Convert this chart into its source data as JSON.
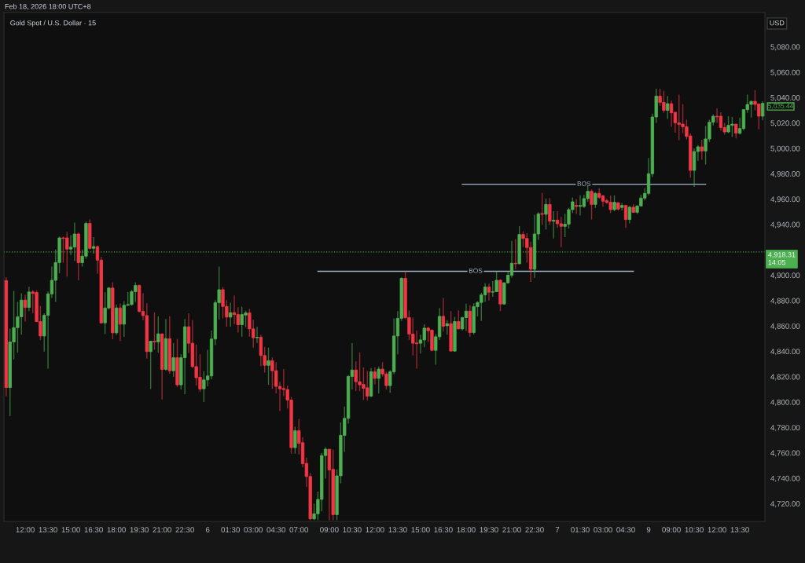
{
  "chart_data": {
    "type": "candlestick",
    "title": "Gold Spot / U.S. Dollar · 15",
    "subtitle": "Feb 18, 2026 18:00 UTC+8",
    "ylabel": "USD",
    "categories": [
      null,
      null,
      null,
      null,
      null,
      "12:00",
      null,
      null,
      null,
      null,
      null,
      "13:30",
      null,
      null,
      null,
      null,
      null,
      "15:00",
      null,
      null,
      null,
      null,
      null,
      "16:30",
      null,
      null,
      null,
      null,
      null,
      "18:00",
      null,
      null,
      null,
      null,
      null,
      "19:30",
      null,
      null,
      null,
      null,
      null,
      "21:00",
      null,
      null,
      null,
      null,
      null,
      "22:30",
      null,
      null,
      null,
      null,
      null,
      "6",
      null,
      null,
      null,
      null,
      null,
      "01:30",
      null,
      null,
      null,
      null,
      null,
      "03:00",
      null,
      null,
      null,
      null,
      null,
      "04:30",
      null,
      null,
      null,
      null,
      null,
      "07:00",
      null,
      null,
      null,
      null,
      null,
      null,
      null,
      "09:00",
      null,
      null,
      null,
      null,
      null,
      "10:30",
      null,
      null,
      null,
      null,
      null,
      "12:00",
      null,
      null,
      null,
      null,
      null,
      "13:30",
      null,
      null,
      null,
      null,
      null,
      "15:00",
      null,
      null,
      null,
      null,
      null,
      "16:30",
      null,
      null,
      null,
      null,
      null,
      "18:00",
      null,
      null,
      null,
      null,
      null,
      "19:30",
      null,
      null,
      null,
      null,
      null,
      "21:00",
      null,
      null,
      null,
      null,
      null,
      "22:30",
      null,
      null,
      null,
      null,
      null,
      "7",
      null,
      null,
      null,
      null,
      null,
      "01:30",
      null,
      null,
      null,
      null,
      null,
      "03:00",
      null,
      null,
      null,
      null,
      null,
      "04:30",
      null,
      null,
      null,
      null,
      null,
      "9",
      null,
      null,
      null,
      null,
      null,
      "09:00",
      null,
      null,
      null,
      null,
      null,
      "10:30",
      null,
      null,
      null,
      null,
      null,
      "12:00",
      null,
      null,
      null,
      null,
      null,
      "13:30",
      null,
      null,
      null,
      null,
      null,
      null
    ],
    "ohlc": [
      [
        4895.8,
        4898.5,
        4804.7,
        4811.5
      ],
      [
        4811.5,
        4857.9,
        4789,
        4847.4
      ],
      [
        4847.4,
        4887.6,
        4833.6,
        4858.7
      ],
      [
        4858.7,
        4879,
        4839,
        4867.2
      ],
      [
        4867.2,
        4885.7,
        4853.2,
        4880.4
      ],
      [
        4880.4,
        4884.5,
        4863.5,
        4874.6
      ],
      [
        4874.6,
        4890.9,
        4871.7,
        4886.8
      ],
      [
        4886.8,
        4888.2,
        4870,
        4885.7
      ],
      [
        4886.4,
        4888.2,
        4863,
        4863.5
      ],
      [
        4863.5,
        4875.8,
        4849,
        4852.1
      ],
      [
        4852.1,
        4870,
        4839.8,
        4868.4
      ],
      [
        4868.4,
        4887.2,
        4826.4,
        4885.3
      ],
      [
        4885.3,
        4906.8,
        4882,
        4896
      ],
      [
        4896,
        4920.2,
        4879,
        4910
      ],
      [
        4910,
        4930.5,
        4901.6,
        4929.4
      ],
      [
        4929.4,
        4930.5,
        4909.9,
        4929
      ],
      [
        4929.4,
        4934,
        4898.9,
        4920.6
      ],
      [
        4920.6,
        4931.5,
        4916,
        4922.2
      ],
      [
        4922.2,
        4941.4,
        4911.3,
        4932.5
      ],
      [
        4932.5,
        4933.6,
        4896,
        4909.9
      ],
      [
        4909.9,
        4920.2,
        4906.8,
        4915
      ],
      [
        4915,
        4942.2,
        4913,
        4940.8
      ],
      [
        4940.8,
        4943.9,
        4920.2,
        4921.2
      ],
      [
        4921.2,
        4930,
        4917,
        4922.6
      ],
      [
        4922.6,
        4923.3,
        4901.2,
        4911.9
      ],
      [
        4911.9,
        4914.6,
        4862,
        4862.4
      ],
      [
        4862.4,
        4886.6,
        4853.6,
        4874.2
      ],
      [
        4874.2,
        4890.7,
        4873,
        4889.9
      ],
      [
        4889.9,
        4894.4,
        4849.5,
        4854.6
      ],
      [
        4854.6,
        4876.9,
        4853,
        4874.2
      ],
      [
        4874.2,
        4877.6,
        4848,
        4861.4
      ],
      [
        4861.4,
        4879.6,
        4851.5,
        4876.3
      ],
      [
        4876.3,
        4886.8,
        4876,
        4876.9
      ],
      [
        4876.9,
        4888.6,
        4876,
        4887
      ],
      [
        4887,
        4894.4,
        4879,
        4891.9
      ],
      [
        4891.9,
        4892.8,
        4870.5,
        4871.5
      ],
      [
        4871.5,
        4885.7,
        4864.5,
        4868.2
      ],
      [
        4868.2,
        4877.9,
        4834.2,
        4839.8
      ],
      [
        4839.8,
        4848,
        4810.3,
        4848
      ],
      [
        4848,
        4870.7,
        4841.2,
        4847.4
      ],
      [
        4847.4,
        4867.6,
        4839,
        4853.8
      ],
      [
        4853.8,
        4853.8,
        4802,
        4825.8
      ],
      [
        4825.8,
        4865.5,
        4824.8,
        4850
      ],
      [
        4850,
        4867.6,
        4822.3,
        4824.7
      ],
      [
        4824.7,
        4846.6,
        4820,
        4835
      ],
      [
        4835,
        4849.7,
        4812,
        4813.6
      ],
      [
        4813.6,
        4837.7,
        4810,
        4835
      ],
      [
        4835,
        4865.5,
        4806.2,
        4859.4
      ],
      [
        4859.4,
        4870,
        4838.8,
        4846.4
      ],
      [
        4846.4,
        4864.5,
        4826.8,
        4828
      ],
      [
        4828,
        4845.3,
        4813,
        4819.2
      ],
      [
        4819.6,
        4837.7,
        4808,
        4810.3
      ],
      [
        4810.5,
        4824.3,
        4800,
        4817.5
      ],
      [
        4817.5,
        4841.2,
        4812.4,
        4820.6
      ],
      [
        4820.6,
        4856.3,
        4818,
        4849.7
      ],
      [
        4849.7,
        4880.4,
        4845,
        4878.3
      ],
      [
        4878.3,
        4906.8,
        4865.1,
        4888.6
      ],
      [
        4888.6,
        4890.7,
        4866,
        4875.4
      ],
      [
        4875.4,
        4880.4,
        4859.4,
        4867
      ],
      [
        4867,
        4878.3,
        4859.4,
        4870.5
      ],
      [
        4870.5,
        4884,
        4861.4,
        4869
      ],
      [
        4869,
        4874.8,
        4854.8,
        4861
      ],
      [
        4861,
        4875.2,
        4851.5,
        4869
      ],
      [
        4868.6,
        4872,
        4859,
        4870.3
      ],
      [
        4870.3,
        4873.4,
        4851.5,
        4857.7
      ],
      [
        4857.7,
        4865,
        4842.9,
        4850.7
      ],
      [
        4850.7,
        4859.3,
        4846.6,
        4851.1
      ],
      [
        4851.1,
        4853.2,
        4828.4,
        4836.7
      ],
      [
        4836.7,
        4843.5,
        4823.3,
        4829
      ],
      [
        4829,
        4842.9,
        4813.6,
        4832.6
      ],
      [
        4832.6,
        4835.2,
        4810.5,
        4824.7
      ],
      [
        4824.7,
        4831.5,
        4806.8,
        4812.4
      ],
      [
        4812.4,
        4816,
        4793,
        4810.5
      ],
      [
        4810.7,
        4826,
        4804.7,
        4809.9
      ],
      [
        4809.9,
        4813,
        4795,
        4801.6
      ],
      [
        4801.6,
        4804,
        4759.4,
        4764.1
      ],
      [
        4764.1,
        4780.6,
        4759.4,
        4777.5
      ],
      [
        4777.5,
        4786.8,
        4758.8,
        4767.6
      ],
      [
        4768,
        4772.4,
        4748.7,
        4751.5
      ],
      [
        4751.7,
        4756.3,
        4733,
        4741.4
      ],
      [
        4741.4,
        4744,
        4707,
        4708
      ],
      [
        4708,
        4720,
        4707,
        4712
      ],
      [
        4712,
        4729.5,
        4707,
        4723.3
      ],
      [
        4723.3,
        4760,
        4714,
        4757.9
      ],
      [
        4757.9,
        4764.5,
        4739.8,
        4762.9
      ],
      [
        4762.9,
        4762.9,
        4707,
        4746.6
      ],
      [
        4747,
        4762.5,
        4707,
        4711.3
      ],
      [
        4711.3,
        4747,
        4707,
        4741.9
      ],
      [
        4741.9,
        4784.1,
        4736,
        4773.8
      ],
      [
        4773.8,
        4796.5,
        4760.8,
        4787.2
      ],
      [
        4787.2,
        4821.2,
        4783,
        4820.2
      ],
      [
        4820.2,
        4846.4,
        4809.9,
        4825.3
      ],
      [
        4825.3,
        4832.1,
        4808.8,
        4816.1
      ],
      [
        4816.1,
        4839.2,
        4808.8,
        4813.6
      ],
      [
        4814,
        4827.4,
        4801.6,
        4810.9
      ],
      [
        4811.3,
        4824.7,
        4801.2,
        4804.7
      ],
      [
        4804.7,
        4826.8,
        4804,
        4823.9
      ],
      [
        4823.9,
        4827.4,
        4814,
        4818.7
      ],
      [
        4818.7,
        4828,
        4806.8,
        4826
      ],
      [
        4826,
        4831.5,
        4820,
        4822.2
      ],
      [
        4822.2,
        4823.9,
        4809.9,
        4813
      ],
      [
        4813,
        4825.3,
        4807.4,
        4823.9
      ],
      [
        4823.9,
        4866,
        4822,
        4852.1
      ],
      [
        4852.1,
        4871.7,
        4837.7,
        4866
      ],
      [
        4866,
        4898.5,
        4864,
        4897.5
      ],
      [
        4897.5,
        4903,
        4865.5,
        4866.6
      ],
      [
        4866.6,
        4872.1,
        4849,
        4853.6
      ],
      [
        4853.6,
        4866.6,
        4836.7,
        4846.4
      ],
      [
        4846.6,
        4856.3,
        4826.4,
        4846
      ],
      [
        4846.4,
        4853.2,
        4838.3,
        4849
      ],
      [
        4849,
        4861.4,
        4843.3,
        4858.3
      ],
      [
        4858.3,
        4859.4,
        4847.4,
        4856.3
      ],
      [
        4856.7,
        4857.3,
        4840,
        4840.8
      ],
      [
        4840.8,
        4853.6,
        4829.5,
        4851.5
      ],
      [
        4851.5,
        4874.2,
        4849,
        4867.6
      ],
      [
        4867.6,
        4882,
        4855.6,
        4859.8
      ],
      [
        4860.2,
        4864.5,
        4853.2,
        4861.8
      ],
      [
        4861.8,
        4871.7,
        4840,
        4840.2
      ],
      [
        4840.2,
        4867.2,
        4839.6,
        4863.5
      ],
      [
        4863.5,
        4872.3,
        4857.3,
        4857.7
      ],
      [
        4857.7,
        4867.2,
        4856.3,
        4866.6
      ],
      [
        4866.6,
        4877.5,
        4856,
        4871.7
      ],
      [
        4871.7,
        4876.3,
        4851.5,
        4854.8
      ],
      [
        4854.8,
        4877.9,
        4853.2,
        4875.2
      ],
      [
        4875.2,
        4879.6,
        4867.6,
        4878.5
      ],
      [
        4878.5,
        4886.2,
        4863.9,
        4884.5
      ],
      [
        4884.5,
        4893.8,
        4879,
        4890.7
      ],
      [
        4890.7,
        4893.4,
        4880,
        4886.6
      ],
      [
        4886.6,
        4895.4,
        4883,
        4887
      ],
      [
        4887,
        4903,
        4886.6,
        4896
      ],
      [
        4896,
        4896.9,
        4871.7,
        4877.3
      ],
      [
        4877.3,
        4894.4,
        4876.9,
        4894
      ],
      [
        4894,
        4903,
        4893.4,
        4900
      ],
      [
        4900,
        4927,
        4898.1,
        4909.4
      ],
      [
        4909.4,
        4928.4,
        4904.7,
        4909
      ],
      [
        4909,
        4938.7,
        4908.8,
        4932.1
      ],
      [
        4932.1,
        4934.6,
        4922.2,
        4929
      ],
      [
        4929,
        4933.2,
        4909.9,
        4921.8
      ],
      [
        4921.8,
        4926.4,
        4894.8,
        4904.7
      ],
      [
        4904.7,
        4947.6,
        4897.9,
        4932.5
      ],
      [
        4932.5,
        4949.6,
        4927.8,
        4948.4
      ],
      [
        4948.6,
        4964.9,
        4939.7,
        4948
      ],
      [
        4948,
        4960.4,
        4936,
        4955.8
      ],
      [
        4955.8,
        4960.8,
        4939.7,
        4942.6
      ],
      [
        4942.6,
        4950.5,
        4929,
        4943.4
      ],
      [
        4943.4,
        4950.5,
        4937.3,
        4940.6
      ],
      [
        4940.6,
        4945.9,
        4922.2,
        4938.5
      ],
      [
        4938.5,
        4948.4,
        4930,
        4940.2
      ],
      [
        4940.2,
        4953.2,
        4936.7,
        4951.7
      ],
      [
        4951.7,
        4961.2,
        4949,
        4957.9
      ],
      [
        4955,
        4960,
        4948.4,
        4954.2
      ],
      [
        4954.2,
        4963,
        4947,
        4955
      ],
      [
        4954.2,
        4963.5,
        4953,
        4960.4
      ],
      [
        4960.4,
        4970.7,
        4958,
        4966.1
      ],
      [
        4966.1,
        4967.6,
        4943.9,
        4955.8
      ],
      [
        4955.8,
        4965.5,
        4953,
        4964.5
      ],
      [
        4964.5,
        4968.6,
        4960.4,
        4961.4
      ],
      [
        4962.5,
        4963.5,
        4954,
        4958.3
      ],
      [
        4958.7,
        4960.4,
        4956.3,
        4957.3
      ],
      [
        4957.5,
        4962.9,
        4949,
        4951.7
      ],
      [
        4951.7,
        4962.9,
        4950.5,
        4957.5
      ],
      [
        4957.1,
        4957.5,
        4951,
        4952.1
      ],
      [
        4953.4,
        4957,
        4951,
        4955
      ],
      [
        4955,
        4955,
        4937.3,
        4943.9
      ],
      [
        4943.9,
        4954.6,
        4940.8,
        4953.6
      ],
      [
        4953.6,
        4955.8,
        4949,
        4949.6
      ],
      [
        4949.6,
        4955.2,
        4948.4,
        4954.6
      ],
      [
        4954.6,
        4963.5,
        4954,
        4960.8
      ],
      [
        4960.8,
        4968.6,
        4959,
        4964.5
      ],
      [
        4964.5,
        4992.3,
        4963,
        4980
      ],
      [
        4980,
        5027.4,
        4977.3,
        5024.7
      ],
      [
        5024.7,
        5047,
        5020.1,
        5041.2
      ],
      [
        5041.2,
        5047,
        5033.5,
        5036.2
      ],
      [
        5036.2,
        5045.3,
        5028,
        5030
      ],
      [
        5030,
        5041.2,
        5023.2,
        5035.2
      ],
      [
        5035.2,
        5037.7,
        5017,
        5028
      ],
      [
        5028.4,
        5028.4,
        5012.3,
        5020.1
      ],
      [
        5020.1,
        5042.4,
        5006.5,
        5018.9
      ],
      [
        5019.1,
        5034.8,
        5012,
        5017
      ],
      [
        5017,
        5022.6,
        5007,
        5009.4
      ],
      [
        5009.8,
        5011.9,
        4976.9,
        4982.6
      ],
      [
        4982.6,
        5000,
        4969.6,
        4997.5
      ],
      [
        4997.5,
        5002.6,
        4990,
        5001.2
      ],
      [
        5001.2,
        5006.7,
        4991,
        4997.9
      ],
      [
        4997.9,
        5017.7,
        4987.2,
        5007.4
      ],
      [
        5007.4,
        5022.6,
        5005,
        5020.6
      ],
      [
        5020.6,
        5026.7,
        5018,
        5025.3
      ],
      [
        5025.3,
        5031.5,
        5020,
        5024.7
      ],
      [
        5025.3,
        5028.4,
        5014,
        5016.4
      ],
      [
        5016.4,
        5020,
        5011,
        5012.9
      ],
      [
        5012.9,
        5025.3,
        5012,
        5018.1
      ],
      [
        5018.1,
        5024.7,
        5009,
        5019.1
      ],
      [
        5019.1,
        5019.1,
        5007.8,
        5011.9
      ],
      [
        5011.9,
        5024.3,
        5011,
        5015.6
      ],
      [
        5015.6,
        5030.9,
        5014,
        5030.5
      ],
      [
        5030.5,
        5042.4,
        5028,
        5034.6
      ],
      [
        5034.6,
        5037.7,
        5024.3,
        5037
      ],
      [
        5037,
        5045.9,
        5030,
        5034.6
      ],
      [
        5035,
        5035,
        5015,
        5025.3
      ],
      [
        5025.3,
        5037,
        5022,
        5035.44
      ]
    ],
    "colors": [
      "#f23645",
      "#4caf50",
      "#4caf50",
      "#4caf50",
      "#4caf50",
      "#f23645",
      "#4caf50",
      "#f23645",
      "#f23645",
      "#f23645",
      "#4caf50",
      "#4caf50",
      "#4caf50",
      "#4caf50",
      "#4caf50",
      "#f23645",
      "#f23645",
      "#4caf50",
      "#4caf50",
      "#f23645",
      "#4caf50",
      "#4caf50",
      "#f23645",
      "#4caf50",
      "#f23645",
      "#f23645",
      "#4caf50",
      "#4caf50",
      "#f23645",
      "#4caf50",
      "#f23645",
      "#4caf50",
      "#4caf50",
      "#4caf50",
      "#4caf50",
      "#f23645",
      "#f23645",
      "#f23645",
      "#4caf50",
      "#f23645",
      "#4caf50",
      "#f23645",
      "#4caf50",
      "#f23645",
      "#4caf50",
      "#f23645",
      "#4caf50",
      "#4caf50",
      "#f23645",
      "#f23645",
      "#f23645",
      "#f23645",
      "#4caf50",
      "#4caf50",
      "#4caf50",
      "#4caf50",
      "#4caf50",
      "#f23645",
      "#f23645",
      "#4caf50",
      "#f23645",
      "#f23645",
      "#4caf50",
      "#4caf50",
      "#f23645",
      "#f23645",
      "#4caf50",
      "#f23645",
      "#f23645",
      "#4caf50",
      "#f23645",
      "#f23645",
      "#f23645",
      "#f23645",
      "#f23645",
      "#f23645",
      "#4caf50",
      "#f23645",
      "#f23645",
      "#f23645",
      "#f23645",
      "#4caf50",
      "#4caf50",
      "#4caf50",
      "#4caf50",
      "#f23645",
      "#f23645",
      "#4caf50",
      "#4caf50",
      "#4caf50",
      "#4caf50",
      "#4caf50",
      "#f23645",
      "#f23645",
      "#f23645",
      "#f23645",
      "#4caf50",
      "#f23645",
      "#4caf50",
      "#f23645",
      "#f23645",
      "#4caf50",
      "#4caf50",
      "#4caf50",
      "#4caf50",
      "#f23645",
      "#f23645",
      "#f23645",
      "#f23645",
      "#4caf50",
      "#4caf50",
      "#f23645",
      "#f23645",
      "#4caf50",
      "#4caf50",
      "#f23645",
      "#4caf50",
      "#f23645",
      "#4caf50",
      "#f23645",
      "#4caf50",
      "#4caf50",
      "#f23645",
      "#4caf50",
      "#4caf50",
      "#4caf50",
      "#4caf50",
      "#f23645",
      "#4caf50",
      "#4caf50",
      "#f23645",
      "#4caf50",
      "#4caf50",
      "#4caf50",
      "#f23645",
      "#4caf50",
      "#f23645",
      "#f23645",
      "#f23645",
      "#4caf50",
      "#4caf50",
      "#f23645",
      "#4caf50",
      "#f23645",
      "#4caf50",
      "#f23645",
      "#f23645",
      "#4caf50",
      "#4caf50",
      "#4caf50",
      "#f23645",
      "#4caf50",
      "#4caf50",
      "#4caf50",
      "#f23645",
      "#4caf50",
      "#f23645",
      "#f23645",
      "#f23645",
      "#f23645",
      "#4caf50",
      "#f23645",
      "#4caf50",
      "#f23645",
      "#4caf50",
      "#f23645",
      "#4caf50",
      "#4caf50",
      "#4caf50",
      "#4caf50",
      "#4caf50",
      "#4caf50",
      "#f23645",
      "#f23645",
      "#4caf50",
      "#f23645",
      "#f23645",
      "#f23645",
      "#f23645",
      "#f23645",
      "#f23645",
      "#4caf50",
      "#4caf50",
      "#f23645",
      "#4caf50",
      "#4caf50",
      "#4caf50",
      "#f23645",
      "#f23645",
      "#f23645",
      "#4caf50",
      "#4caf50",
      "#f23645",
      "#4caf50",
      "#4caf50",
      "#4caf50",
      "#4caf50",
      "#f23645",
      "#f23645",
      "#4caf50"
    ],
    "series": [
      {
        "type": "line",
        "name": "BOS",
        "color": "#9fb4c8",
        "values": [
          null,
          null,
          null,
          null,
          null,
          null,
          null,
          null,
          null,
          null,
          null,
          null,
          null,
          null,
          null,
          null,
          null,
          null,
          null,
          null,
          null,
          null,
          null,
          null,
          null,
          null,
          null,
          null,
          null,
          null,
          null,
          null,
          null,
          null,
          null,
          null,
          null,
          null,
          null,
          null,
          null,
          null,
          null,
          null,
          null,
          null,
          null,
          null,
          null,
          null,
          null,
          null,
          null,
          null,
          null,
          null,
          null,
          null,
          null,
          null,
          null,
          null,
          null,
          null,
          null,
          null,
          null,
          null,
          null,
          null,
          null,
          null,
          null,
          null,
          null,
          null,
          null,
          null,
          null,
          null,
          null,
          null,
          4903.1,
          null,
          null,
          null,
          null,
          null,
          null,
          null,
          null,
          null,
          null,
          null,
          null,
          null,
          null,
          null,
          null,
          null,
          null,
          null,
          null,
          null,
          null,
          null,
          null,
          null,
          null,
          null,
          null,
          null,
          null,
          null,
          null,
          null,
          null,
          null,
          null,
          null,
          null,
          null,
          null,
          null,
          null,
          null,
          null,
          null,
          null,
          null,
          null,
          null,
          null,
          null,
          null,
          null,
          null,
          null,
          null,
          null,
          null,
          null,
          null,
          null,
          null,
          null,
          null,
          null,
          null,
          null,
          null,
          null,
          null,
          null,
          null,
          null,
          null,
          null,
          null,
          null,
          null,
          null,
          null,
          null,
          null,
          4903.1,
          null,
          null,
          null,
          null,
          null,
          null,
          null,
          null,
          null,
          null,
          null,
          null,
          null,
          null,
          null,
          null,
          null,
          null,
          null,
          null,
          null,
          null,
          null,
          null,
          null,
          null,
          null,
          null,
          null,
          null,
          null,
          null,
          null,
          null
        ]
      },
      {
        "type": "line",
        "name": "BOS",
        "color": "#9fb4c8",
        "values": [
          null,
          null,
          null,
          null,
          null,
          null,
          null,
          null,
          null,
          null,
          null,
          null,
          null,
          null,
          null,
          null,
          null,
          null,
          null,
          null,
          null,
          null,
          null,
          null,
          null,
          null,
          null,
          null,
          null,
          null,
          null,
          null,
          null,
          null,
          null,
          null,
          null,
          null,
          null,
          null,
          null,
          null,
          null,
          null,
          null,
          null,
          null,
          null,
          null,
          null,
          null,
          null,
          null,
          null,
          null,
          null,
          null,
          null,
          null,
          null,
          null,
          null,
          null,
          null,
          null,
          null,
          null,
          null,
          null,
          null,
          null,
          null,
          null,
          null,
          null,
          null,
          null,
          null,
          null,
          null,
          null,
          null,
          null,
          null,
          null,
          null,
          null,
          null,
          null,
          null,
          null,
          null,
          null,
          null,
          null,
          null,
          null,
          null,
          null,
          null,
          null,
          null,
          null,
          null,
          null,
          null,
          null,
          null,
          null,
          null,
          null,
          null,
          null,
          null,
          null,
          null,
          null,
          null,
          null,
          null,
          4971.7,
          null,
          null,
          null,
          null,
          null,
          null,
          null,
          null,
          null,
          null,
          null,
          null,
          null,
          null,
          null,
          null,
          null,
          null,
          null,
          null,
          null,
          null,
          null,
          null,
          null,
          null,
          null,
          null,
          null,
          null,
          null,
          null,
          null,
          null,
          null,
          null,
          null,
          null,
          null,
          null,
          null,
          null,
          null,
          null,
          null,
          null,
          null,
          null,
          null,
          null,
          null,
          null,
          null,
          null,
          null,
          null,
          null,
          null,
          null,
          null,
          null,
          null,
          null,
          4971.7,
          null,
          null,
          null,
          null,
          null,
          null,
          null,
          null,
          null,
          null,
          null,
          null,
          null,
          null,
          null
        ]
      }
    ],
    "ylim": [
      4706,
      5107
    ],
    "yticks": [
      {
        "value": 4720,
        "label": "4,720.00"
      },
      {
        "value": 4740,
        "label": "4,740.00"
      },
      {
        "value": 4760,
        "label": "4,760.00"
      },
      {
        "value": 4780,
        "label": "4,780.00"
      },
      {
        "value": 4800,
        "label": "4,800.00"
      },
      {
        "value": 4820,
        "label": "4,820.00"
      },
      {
        "value": 4840,
        "label": "4,840.00"
      },
      {
        "value": 4860,
        "label": "4,860.00"
      },
      {
        "value": 4880,
        "label": "4,880.00"
      },
      {
        "value": 4900,
        "label": "4,900.00"
      },
      {
        "value": 4940,
        "label": "4,940.00"
      },
      {
        "value": 4960,
        "label": "4,960.00"
      },
      {
        "value": 4980,
        "label": "4,980.00"
      },
      {
        "value": 5000,
        "label": "5,000.00"
      },
      {
        "value": 5020,
        "label": "5,020.00"
      },
      {
        "value": 5040,
        "label": "5,040.00"
      },
      {
        "value": 5060,
        "label": "5,060.00"
      },
      {
        "value": 5080,
        "label": "5,080.00"
      }
    ],
    "ref_lines": [
      {
        "axis": "y",
        "value": 4918.31,
        "label": "4,918.31\n14:05",
        "color": "#4caf50",
        "line_style": "dotted"
      }
    ],
    "annotations": [
      "5,035.44"
    ]
  }
}
